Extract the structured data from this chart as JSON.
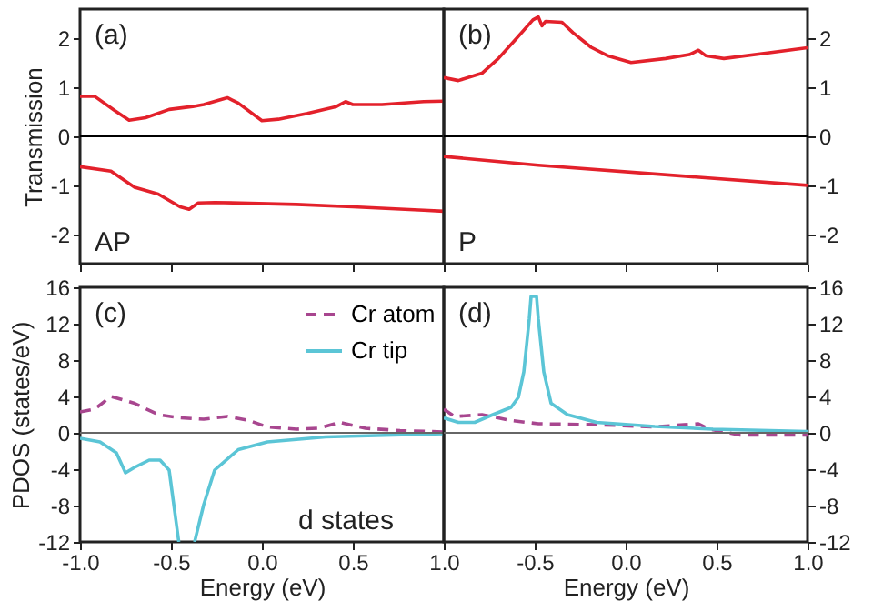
{
  "chart_data": [
    {
      "type": "line",
      "ylabel": "Transmission",
      "annotations": [
        "(a)",
        "AP"
      ],
      "xlim": [
        -1,
        1
      ],
      "ylim": [
        -2.6,
        2.6
      ],
      "tick_labels": "y",
      "xticks": [
        {
          "value": -1,
          "label": null
        },
        {
          "value": -0.5,
          "label": null
        },
        {
          "value": 0,
          "label": null
        },
        {
          "value": 0.5,
          "label": null
        },
        {
          "value": 1,
          "label": null
        }
      ],
      "yticks": [
        -2,
        -1,
        0,
        1,
        2
      ],
      "ref_lines": [
        {
          "axis": "y",
          "value": 0,
          "color": "#000000"
        }
      ],
      "series": [
        {
          "color": "#e3212b",
          "x": [
            -1,
            -0.92,
            -0.81,
            -0.73,
            -0.64,
            -0.51,
            -0.38,
            -0.32,
            -0.19,
            -0.13,
            0.0,
            0.09,
            0.25,
            0.41,
            0.46,
            0.5,
            0.66,
            0.89,
            1
          ],
          "values": [
            0.82,
            0.82,
            0.53,
            0.33,
            0.38,
            0.55,
            0.61,
            0.65,
            0.79,
            0.68,
            0.32,
            0.35,
            0.47,
            0.61,
            0.71,
            0.65,
            0.65,
            0.71,
            0.72
          ]
        },
        {
          "color": "#e3212b",
          "x": [
            -1,
            -0.83,
            -0.7,
            -0.57,
            -0.45,
            -0.4,
            -0.35,
            -0.26,
            0.19,
            0.5,
            0.89,
            1
          ],
          "values": [
            -0.62,
            -0.71,
            -1.04,
            -1.18,
            -1.44,
            -1.49,
            -1.36,
            -1.35,
            -1.39,
            -1.44,
            -1.51,
            -1.53
          ]
        }
      ]
    },
    {
      "type": "line",
      "annotations": [
        "(b)",
        "P"
      ],
      "xlim": [
        -1,
        1
      ],
      "ylim": [
        -2.6,
        2.6
      ],
      "tick_labels": "y",
      "xticks": [
        {
          "value": -1,
          "label": null
        },
        {
          "value": -0.5,
          "label": null
        },
        {
          "value": 0,
          "label": null
        },
        {
          "value": 0.5,
          "label": null
        },
        {
          "value": 1,
          "label": null
        }
      ],
      "yticks": [
        -2,
        -1,
        0,
        1,
        2
      ],
      "ref_lines": [
        {
          "axis": "y",
          "value": 0,
          "color": "#000000"
        }
      ],
      "series": [
        {
          "color": "#e3212b",
          "x": [
            -1,
            -0.92,
            -0.79,
            -0.7,
            -0.6,
            -0.51,
            -0.48,
            -0.46,
            -0.44,
            -0.35,
            -0.29,
            -0.19,
            -0.1,
            0.03,
            0.22,
            0.35,
            0.4,
            0.44,
            0.54,
            0.79,
            1
          ],
          "values": [
            1.2,
            1.14,
            1.29,
            1.59,
            2.0,
            2.38,
            2.44,
            2.26,
            2.35,
            2.33,
            2.12,
            1.82,
            1.65,
            1.51,
            1.59,
            1.67,
            1.76,
            1.65,
            1.59,
            1.71,
            1.81
          ]
        },
        {
          "color": "#e3212b",
          "x": [
            -1,
            -0.48,
            1
          ],
          "values": [
            -0.41,
            -0.59,
            -1.0
          ]
        }
      ]
    },
    {
      "type": "line",
      "ylabel": "PDOS (states/eV)",
      "xlabel": "Energy (eV)",
      "annotations": [
        "(c)",
        "d states"
      ],
      "legend": "top right",
      "xlim": [
        -1,
        1
      ],
      "ylim": [
        -12,
        16
      ],
      "xticks": [
        {
          "value": -1,
          "label": "-1.0"
        },
        {
          "value": -0.5,
          "label": "-0.5"
        },
        {
          "value": 0,
          "label": "0.0"
        },
        {
          "value": 0.5,
          "label": "0.5"
        },
        {
          "value": 1,
          "label": null
        }
      ],
      "yticks": [
        -12,
        -8,
        -4,
        0,
        4,
        8,
        12,
        16
      ],
      "ref_lines": [
        {
          "axis": "y",
          "value": 0,
          "color": "#666666"
        }
      ],
      "series": [
        {
          "name": "Cr atom",
          "color": "#a8468f",
          "line_style": "dashed",
          "x": [
            -1,
            -0.92,
            -0.83,
            -0.7,
            -0.57,
            -0.45,
            -0.32,
            -0.19,
            -0.07,
            0.03,
            0.19,
            0.31,
            0.43,
            0.57,
            0.76,
            1
          ],
          "values": [
            2.3,
            2.6,
            4.0,
            3.25,
            2.0,
            1.65,
            1.5,
            1.8,
            1.35,
            0.65,
            0.4,
            0.5,
            1.15,
            0.5,
            0.25,
            0.1
          ]
        },
        {
          "name": "Cr tip",
          "color": "#5bc5d6",
          "line_style": "solid",
          "x": [
            -1,
            -0.89,
            -0.8,
            -0.75,
            -0.7,
            -0.62,
            -0.56,
            -0.51,
            -0.457,
            -0.42,
            -0.37,
            -0.32,
            -0.26,
            -0.13,
            0.03,
            0.35,
            1
          ],
          "values": [
            -0.6,
            -1.0,
            -2.2,
            -4.4,
            -3.8,
            -3.0,
            -3.0,
            -4.1,
            -12,
            null,
            -12,
            -7.9,
            -4.1,
            -1.85,
            -1.0,
            -0.45,
            -0.1
          ]
        }
      ]
    },
    {
      "type": "line",
      "xlabel": "Energy (eV)",
      "annotations": [
        "(d)"
      ],
      "xlim": [
        -1,
        1
      ],
      "ylim": [
        -12,
        16
      ],
      "xticks": [
        {
          "value": -1,
          "label": "1.0"
        },
        {
          "value": -0.5,
          "label": "-0.5"
        },
        {
          "value": 0,
          "label": "0.0"
        },
        {
          "value": 0.5,
          "label": "0.5"
        },
        {
          "value": 1,
          "label": "1.0"
        }
      ],
      "yticks": [
        -12,
        -8,
        -4,
        0,
        4,
        8,
        12,
        16
      ],
      "ref_lines": [
        {
          "axis": "y",
          "value": 0,
          "color": "#666666"
        }
      ],
      "series": [
        {
          "color": "#a8468f",
          "line_style": "dashed",
          "x": [
            -1,
            -0.94,
            -0.79,
            -0.63,
            -0.48,
            -0.16,
            0.16,
            0.32,
            0.4,
            0.46,
            0.63,
            1
          ],
          "values": [
            2.6,
            1.8,
            2.0,
            1.35,
            1.0,
            0.9,
            0.65,
            0.9,
            1.0,
            0.4,
            -0.25,
            -0.25
          ]
        },
        {
          "color": "#5bc5d6",
          "line_style": "solid",
          "x": [
            -1,
            -0.92,
            -0.83,
            -0.73,
            -0.63,
            -0.59,
            -0.56,
            -0.53,
            -0.52,
            -0.49,
            -0.48,
            -0.45,
            -0.41,
            -0.32,
            -0.16,
            0.16,
            0.48,
            1
          ],
          "values": [
            1.65,
            1.15,
            1.15,
            2.0,
            2.8,
            3.9,
            6.7,
            12.5,
            15.0,
            15.0,
            12.5,
            6.7,
            3.25,
            2.0,
            1.15,
            0.7,
            0.4,
            0.15
          ]
        }
      ]
    }
  ]
}
